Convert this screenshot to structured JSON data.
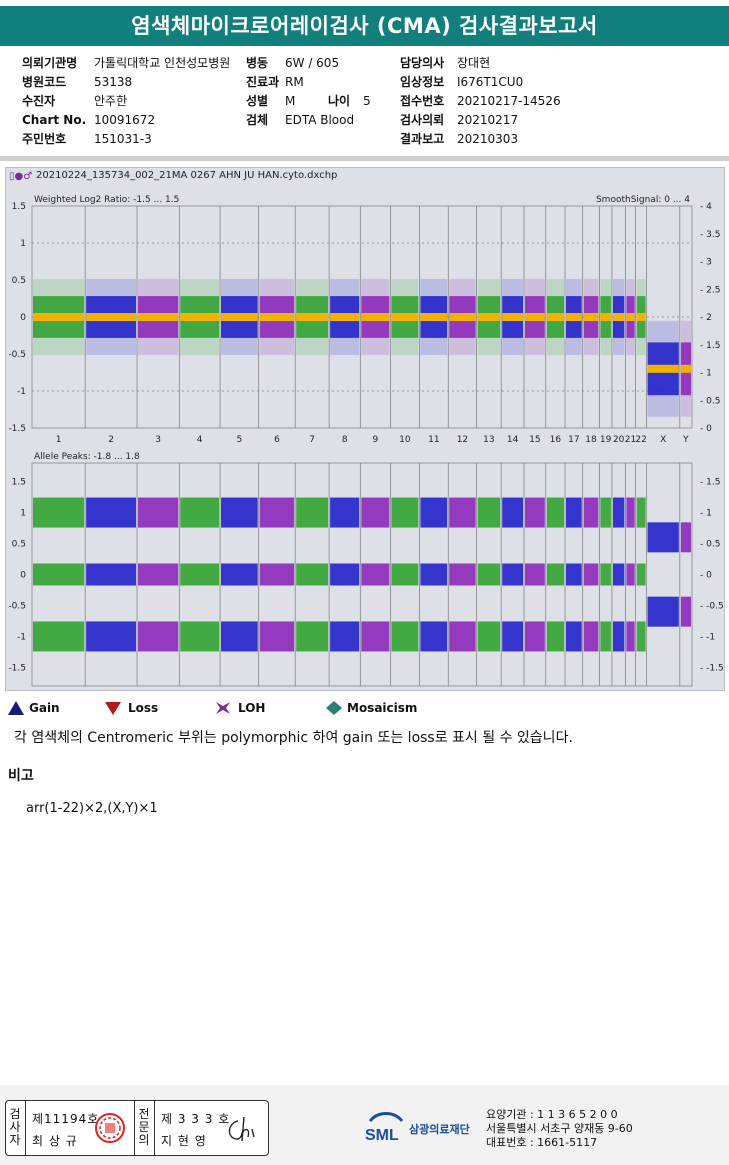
{
  "header": {
    "title": "염색체마이크로어레이검사 (CMA) 검사결과보고서"
  },
  "info_left": [
    {
      "label": "의뢰기관명",
      "value": "가톨릭대학교 인천성모병원"
    },
    {
      "label": "병원코드",
      "value": "53138"
    },
    {
      "label": "수진자",
      "value": "안주한"
    },
    {
      "label": "Chart No.",
      "value": "10091672"
    },
    {
      "label": "주민번호",
      "value": "151031-3"
    }
  ],
  "info_mid": [
    {
      "label": "병동",
      "value": "6W / 605"
    },
    {
      "label": "진료과",
      "value": "RM"
    },
    {
      "label": "성별",
      "value": "M"
    },
    {
      "label": "검체",
      "value": "EDTA Blood"
    }
  ],
  "age": {
    "label": "나이",
    "value": "5"
  },
  "info_right": [
    {
      "label": "담당의사",
      "value": "장대현"
    },
    {
      "label": "임상정보",
      "value": "I676T1CU0"
    },
    {
      "label": "접수번호",
      "value": "20210217-14526"
    },
    {
      "label": "검사의뢰",
      "value": "20210217"
    },
    {
      "label": "결과보고",
      "value": "20210303"
    }
  ],
  "chart_panel": {
    "file_name": "20210224_135734_002_21MA 0267 AHN JU HAN.cyto.dxchp",
    "top_title": "Weighted Log2 Ratio: -1.5 ... 1.5",
    "top_right_title": "SmoothSignal: 0 ... 4",
    "bottom_title": "Allele Peaks: -1.8 ... 1.8"
  },
  "chart_data": [
    {
      "type": "scatter",
      "title": "Weighted Log2 Ratio: -1.5 ... 1.5",
      "right_axis_title": "SmoothSignal: 0 ... 4",
      "categories": [
        "1",
        "2",
        "3",
        "4",
        "5",
        "6",
        "7",
        "8",
        "9",
        "10",
        "11",
        "12",
        "13",
        "14",
        "15",
        "16",
        "17",
        "18",
        "19",
        "20",
        "21",
        "22",
        "X",
        "Y"
      ],
      "ylim": [
        -1.5,
        1.5
      ],
      "yticks": [
        "1.5",
        "1",
        "0.5",
        "0",
        "-0.5",
        "-1",
        "-1.5"
      ],
      "right_ylim": [
        0,
        4
      ],
      "right_yticks": [
        "4",
        "3.5",
        "3",
        "2.5",
        "2",
        "1.5",
        "1",
        "0.5",
        "0"
      ],
      "series": [
        {
          "values": [
            0,
            0,
            0,
            0,
            0,
            0,
            0,
            0,
            0,
            0,
            0,
            0,
            0,
            0,
            0,
            0,
            0,
            0,
            0,
            0,
            0,
            0,
            -0.7,
            -0.7
          ]
        }
      ],
      "grid": true
    },
    {
      "type": "scatter",
      "title": "Allele Peaks: -1.8 ... 1.8",
      "categories": [
        "1",
        "2",
        "3",
        "4",
        "5",
        "6",
        "7",
        "8",
        "9",
        "10",
        "11",
        "12",
        "13",
        "14",
        "15",
        "16",
        "17",
        "18",
        "19",
        "20",
        "21",
        "22",
        "X",
        "Y"
      ],
      "ylim": [
        -1.8,
        1.8
      ],
      "yticks": [
        "1.5",
        "1",
        "0.5",
        "0",
        "-0.5",
        "-1",
        "-1.5"
      ],
      "peaks_autosome": [
        1,
        0,
        -1
      ],
      "peaks_sex": [
        0.6,
        -0.6
      ],
      "grid": true
    }
  ],
  "legend": [
    {
      "name": "Gain",
      "color": "#1a1a7a"
    },
    {
      "name": "Loss",
      "color": "#b3181e"
    },
    {
      "name": "LOH",
      "color": "#7a2a9a"
    },
    {
      "name": "Mosaicism",
      "color": "#2f7d78"
    }
  ],
  "note": "각 염색체의 Centromeric 부위는 polymorphic 하여 gain 또는 loss로 표시 될 수 있습니다.",
  "remarks": {
    "label": "비고",
    "karyotype": "arr(1-22)×2,(X,Y)×1"
  },
  "signatures": {
    "check_label": "검사자",
    "check_no": "제11194호",
    "check_name": "최 상 규",
    "spec_label": "전문의",
    "spec_no": "제 3 3 3 호",
    "spec_name": "지 현 영"
  },
  "org": {
    "logo": "SML",
    "name": "삼광의료재단",
    "code": "요양기관 : 1 1 3 6 5 2 0 0",
    "address": "서울특별시 서초구 양재동 9-60",
    "phone": "대표번호 : 1661-5117"
  },
  "colors": {
    "teal": "#11807d",
    "green": "#2ca02c",
    "blue": "#1c1cc8",
    "purple": "#8a22b8",
    "orange": "#f2b300"
  }
}
